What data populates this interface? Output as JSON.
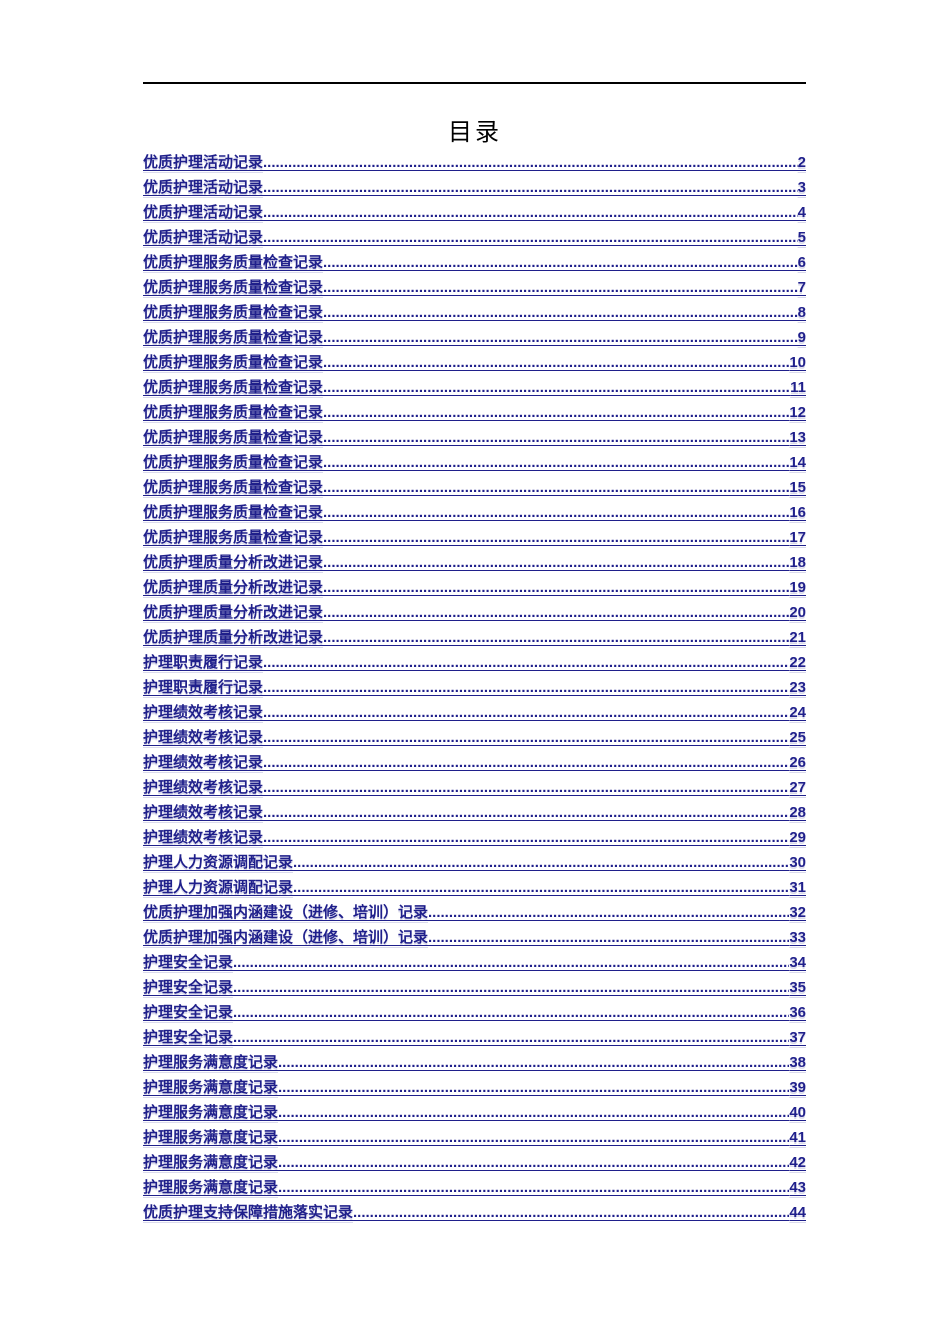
{
  "document": {
    "title": "目录"
  },
  "toc": {
    "entries": [
      {
        "label": "优质护理活动记录",
        "page": 2
      },
      {
        "label": "优质护理活动记录",
        "page": 3
      },
      {
        "label": "优质护理活动记录",
        "page": 4
      },
      {
        "label": "优质护理活动记录",
        "page": 5
      },
      {
        "label": "优质护理服务质量检查记录",
        "page": 6
      },
      {
        "label": "优质护理服务质量检查记录",
        "page": 7
      },
      {
        "label": "优质护理服务质量检查记录",
        "page": 8
      },
      {
        "label": "优质护理服务质量检查记录",
        "page": 9
      },
      {
        "label": "优质护理服务质量检查记录",
        "page": 10
      },
      {
        "label": "优质护理服务质量检查记录",
        "page": 11
      },
      {
        "label": "优质护理服务质量检查记录",
        "page": 12
      },
      {
        "label": "优质护理服务质量检查记录",
        "page": 13
      },
      {
        "label": "优质护理服务质量检查记录",
        "page": 14
      },
      {
        "label": "优质护理服务质量检查记录",
        "page": 15
      },
      {
        "label": "优质护理服务质量检查记录",
        "page": 16
      },
      {
        "label": "优质护理服务质量检查记录",
        "page": 17
      },
      {
        "label": "优质护理质量分析改进记录",
        "page": 18
      },
      {
        "label": "优质护理质量分析改进记录",
        "page": 19
      },
      {
        "label": "优质护理质量分析改进记录",
        "page": 20
      },
      {
        "label": "优质护理质量分析改进记录",
        "page": 21
      },
      {
        "label": "护理职责履行记录",
        "page": 22
      },
      {
        "label": "护理职责履行记录",
        "page": 23
      },
      {
        "label": "护理绩效考核记录",
        "page": 24
      },
      {
        "label": "护理绩效考核记录",
        "page": 25
      },
      {
        "label": "护理绩效考核记录",
        "page": 26
      },
      {
        "label": "护理绩效考核记录",
        "page": 27
      },
      {
        "label": "护理绩效考核记录",
        "page": 28
      },
      {
        "label": "护理绩效考核记录",
        "page": 29
      },
      {
        "label": "护理人力资源调配记录",
        "page": 30
      },
      {
        "label": "护理人力资源调配记录",
        "page": 31
      },
      {
        "label": "优质护理加强内涵建设（进修、培训）记录",
        "page": 32
      },
      {
        "label": "优质护理加强内涵建设（进修、培训）记录",
        "page": 33
      },
      {
        "label": "护理安全记录",
        "page": 34
      },
      {
        "label": "护理安全记录",
        "page": 35
      },
      {
        "label": "护理安全记录",
        "page": 36
      },
      {
        "label": "护理安全记录",
        "page": 37
      },
      {
        "label": "护理服务满意度记录",
        "page": 38
      },
      {
        "label": "护理服务满意度记录",
        "page": 39
      },
      {
        "label": "护理服务满意度记录",
        "page": 40
      },
      {
        "label": "护理服务满意度记录",
        "page": 41
      },
      {
        "label": "护理服务满意度记录",
        "page": 42
      },
      {
        "label": "护理服务满意度记录",
        "page": 43
      },
      {
        "label": "优质护理支持保障措施落实记录",
        "page": 44
      }
    ]
  },
  "colors": {
    "link_text": "#1F1F8B",
    "header_rule": "#000000",
    "page_background": "#FFFFFF"
  }
}
